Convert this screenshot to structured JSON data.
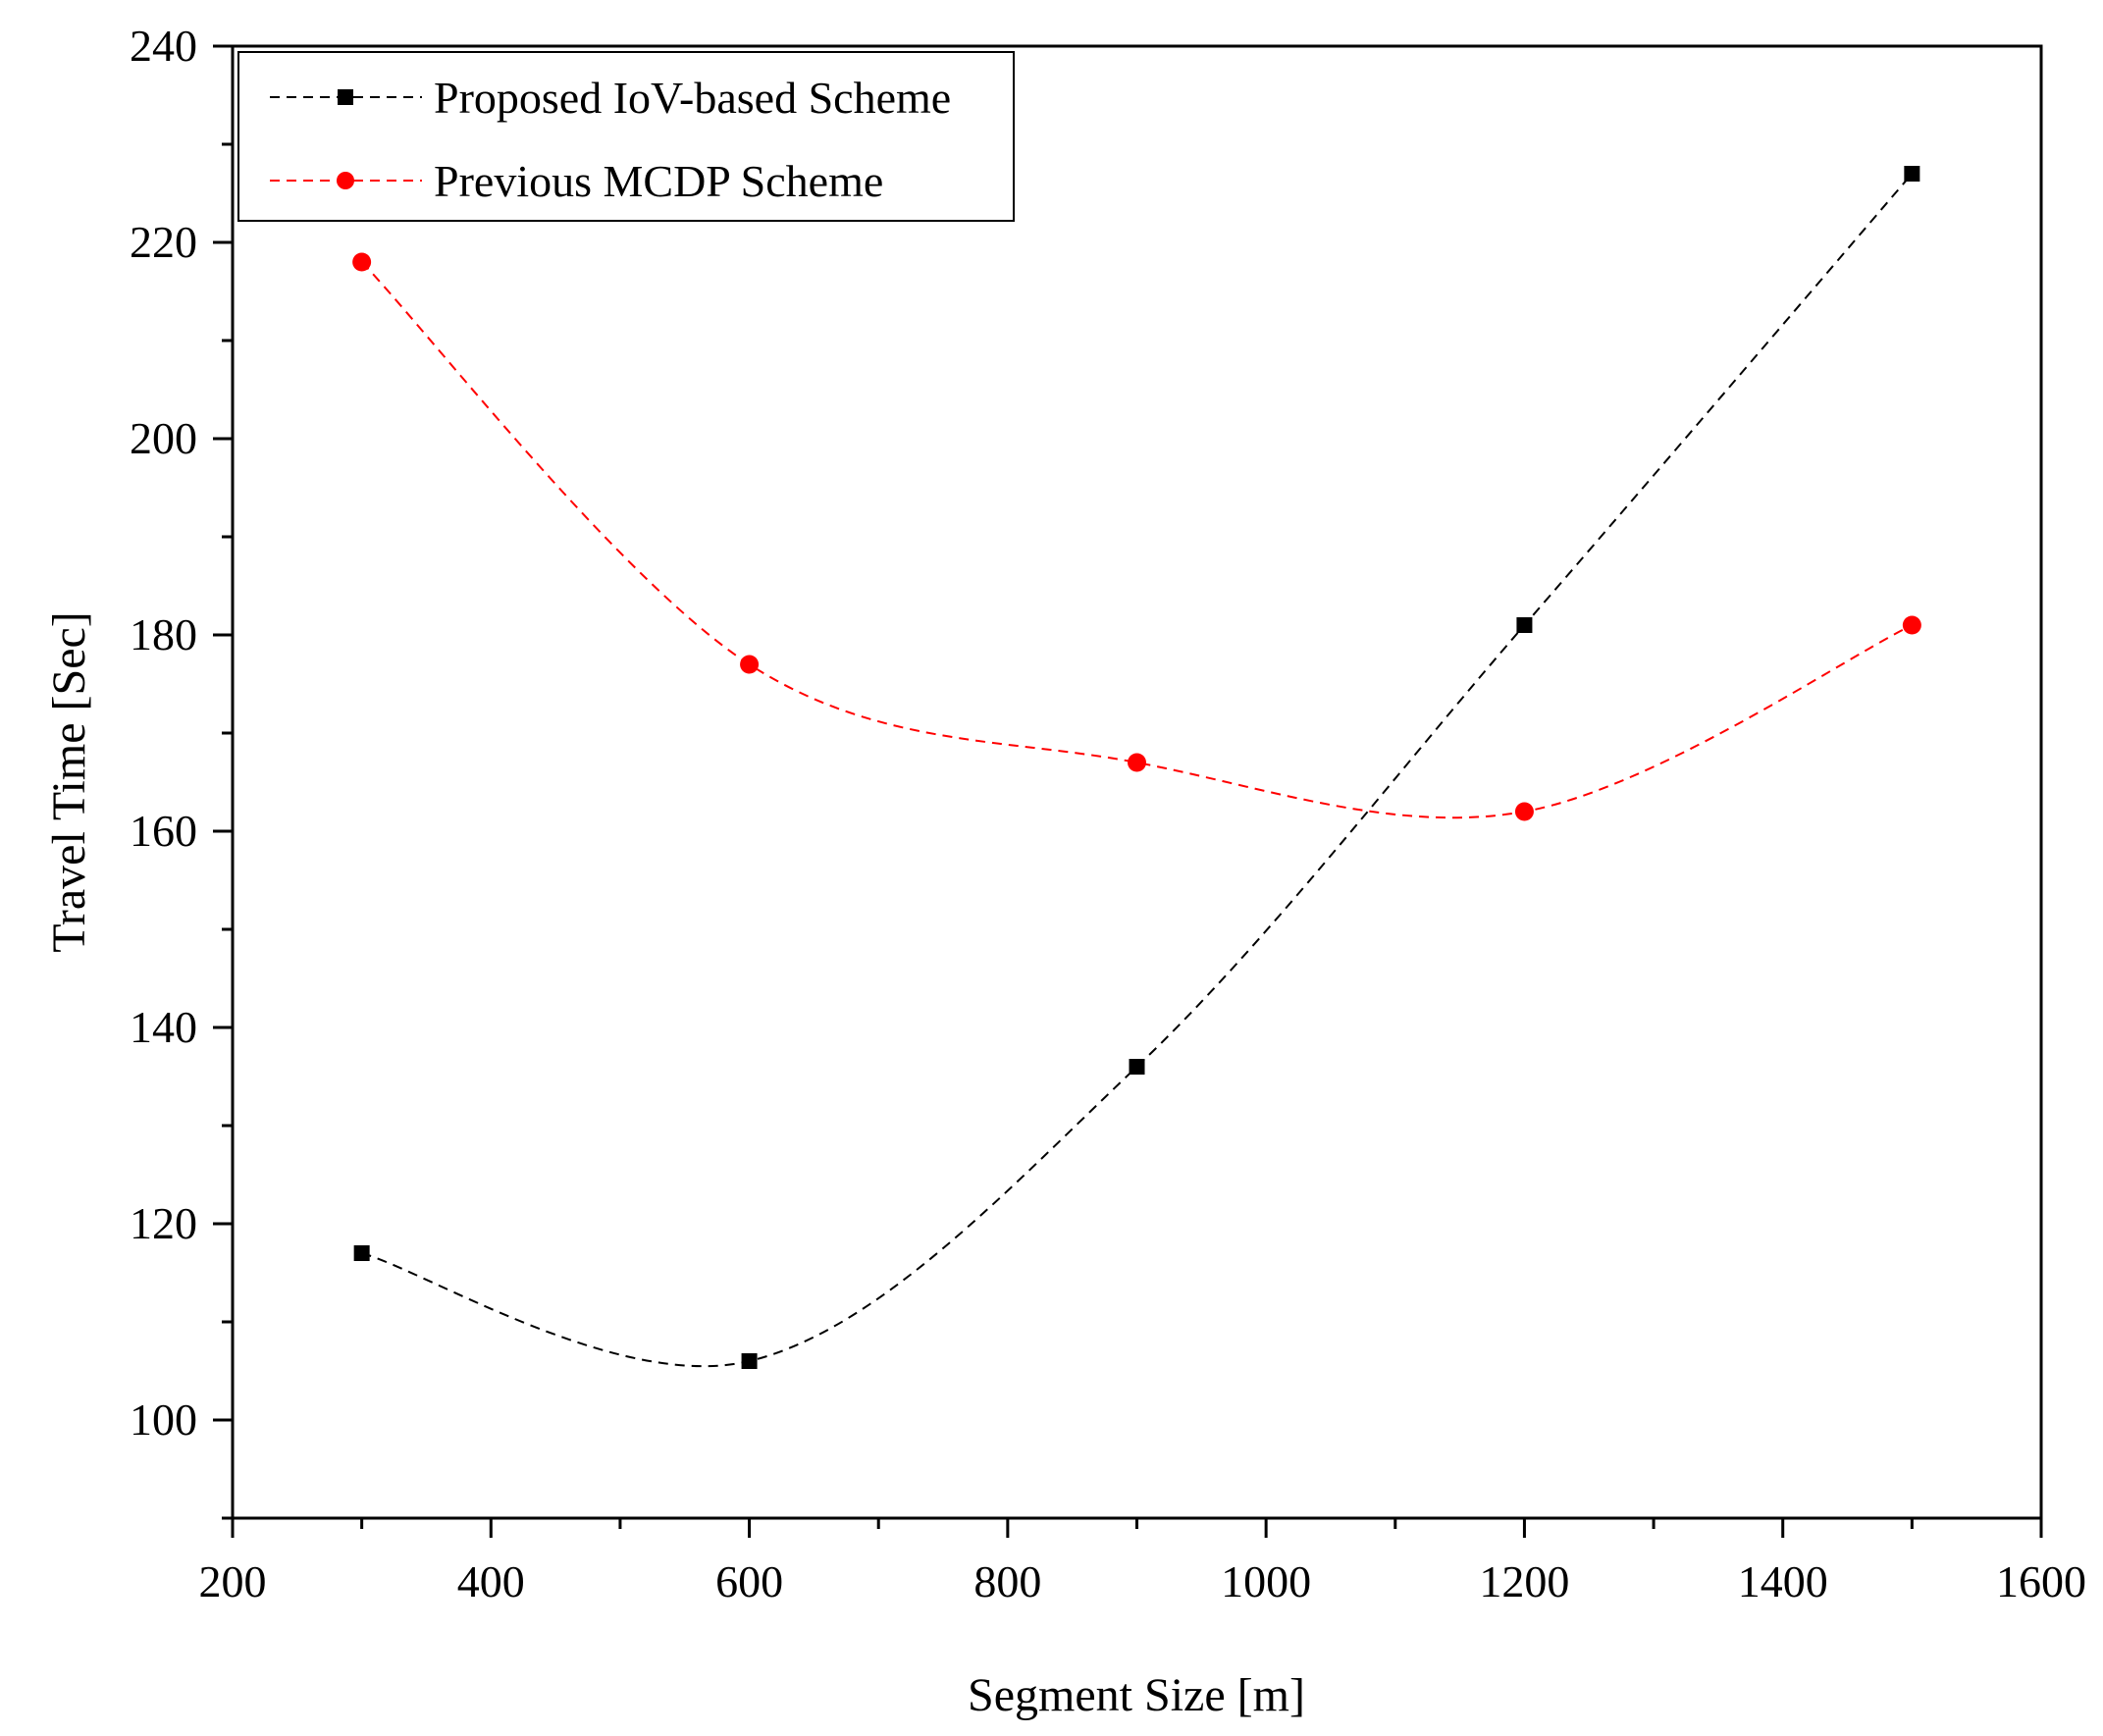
{
  "chart_data": {
    "type": "line",
    "title": "",
    "xlabel": "Segment Size [m]",
    "ylabel": "Travel Time [Sec]",
    "xlim": [
      200,
      1600
    ],
    "ylim": [
      90,
      240
    ],
    "xticks": [
      200,
      400,
      600,
      800,
      1000,
      1200,
      1400,
      1600
    ],
    "yticks": [
      100,
      120,
      140,
      160,
      180,
      200,
      220,
      240
    ],
    "grid": false,
    "legend_position": "top-left",
    "x": [
      300,
      600,
      900,
      1200,
      1500
    ],
    "series": [
      {
        "name": "Proposed IoV-based Scheme",
        "values": [
          117,
          106,
          136,
          181,
          227
        ],
        "color": "#000000",
        "marker": "square",
        "line_style": "dashed"
      },
      {
        "name": "Previous MCDP Scheme",
        "values": [
          218,
          177,
          167,
          162,
          181
        ],
        "color": "#ff0000",
        "marker": "circle",
        "line_style": "dashed"
      }
    ]
  }
}
